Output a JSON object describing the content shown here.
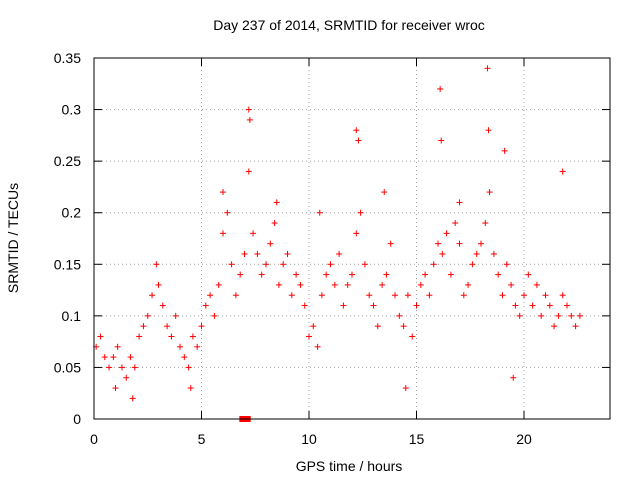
{
  "chart_data": {
    "type": "scatter",
    "title": "Day 237 of 2014, SRMTID for receiver wroc",
    "xlabel": "GPS time / hours",
    "ylabel": "SRMTID / TECUs",
    "xlim": [
      0,
      24
    ],
    "ylim": [
      0,
      0.35
    ],
    "x_ticks": [
      0,
      5,
      10,
      15,
      20
    ],
    "y_ticks": [
      0,
      0.05,
      0.1,
      0.15,
      0.2,
      0.25,
      0.3,
      0.35
    ],
    "x_tick_labels": [
      "0",
      "5",
      "10",
      "15",
      "20"
    ],
    "y_tick_labels": [
      "0",
      "0.05",
      "0.1",
      "0.15",
      "0.2",
      "0.25",
      "0.3",
      "0.35"
    ],
    "grid": true,
    "marker": "+",
    "color": "#ff0000",
    "series": [
      {
        "name": "SRMTID",
        "x": [
          0.1,
          0.3,
          0.5,
          0.7,
          0.9,
          1.1,
          1.3,
          1.5,
          1.7,
          1.9,
          2.1,
          2.3,
          2.5,
          2.7,
          2.9,
          3.0,
          3.2,
          3.4,
          3.6,
          3.8,
          4.0,
          4.2,
          4.4,
          4.6,
          4.8,
          5.0,
          5.2,
          5.4,
          5.6,
          5.8,
          6.0,
          6.2,
          6.4,
          6.6,
          6.8,
          7.0,
          7.2,
          7.4,
          7.6,
          7.8,
          8.0,
          8.2,
          8.4,
          8.6,
          8.8,
          9.0,
          9.2,
          9.4,
          9.6,
          9.8,
          10.0,
          10.2,
          10.4,
          10.6,
          10.8,
          11.0,
          11.2,
          11.4,
          11.6,
          11.8,
          12.0,
          12.2,
          12.4,
          12.6,
          12.8,
          13.0,
          13.2,
          13.4,
          13.6,
          13.8,
          14.0,
          14.2,
          14.4,
          14.6,
          14.8,
          15.0,
          15.2,
          15.4,
          15.6,
          15.8,
          16.0,
          16.2,
          16.4,
          16.6,
          16.8,
          17.0,
          17.2,
          17.4,
          17.6,
          17.8,
          18.0,
          18.2,
          18.4,
          18.6,
          18.8,
          19.0,
          19.2,
          19.4,
          19.6,
          19.8,
          20.0,
          20.2,
          20.4,
          20.6,
          20.8,
          21.0,
          21.2,
          21.4,
          21.6,
          21.8,
          22.0,
          22.2,
          22.4,
          22.6,
          7.2,
          7.25,
          12.2,
          12.3,
          16.1,
          16.15,
          18.3,
          18.35,
          19.1,
          21.8,
          6.0,
          8.5,
          10.5,
          13.5,
          17.0,
          1.0,
          1.8,
          4.5,
          14.5,
          19.5
        ],
        "y": [
          0.07,
          0.08,
          0.06,
          0.05,
          0.06,
          0.07,
          0.05,
          0.04,
          0.06,
          0.05,
          0.08,
          0.09,
          0.1,
          0.12,
          0.15,
          0.13,
          0.11,
          0.09,
          0.08,
          0.1,
          0.07,
          0.06,
          0.05,
          0.08,
          0.07,
          0.09,
          0.11,
          0.12,
          0.1,
          0.13,
          0.18,
          0.2,
          0.15,
          0.12,
          0.14,
          0.16,
          0.24,
          0.18,
          0.16,
          0.14,
          0.15,
          0.17,
          0.19,
          0.13,
          0.15,
          0.16,
          0.12,
          0.14,
          0.13,
          0.11,
          0.08,
          0.09,
          0.07,
          0.12,
          0.14,
          0.15,
          0.13,
          0.16,
          0.11,
          0.13,
          0.14,
          0.18,
          0.2,
          0.15,
          0.12,
          0.11,
          0.09,
          0.13,
          0.14,
          0.17,
          0.12,
          0.1,
          0.09,
          0.12,
          0.08,
          0.11,
          0.13,
          0.14,
          0.12,
          0.15,
          0.17,
          0.16,
          0.18,
          0.14,
          0.19,
          0.17,
          0.12,
          0.13,
          0.15,
          0.16,
          0.17,
          0.19,
          0.22,
          0.16,
          0.14,
          0.12,
          0.15,
          0.13,
          0.11,
          0.1,
          0.12,
          0.14,
          0.11,
          0.13,
          0.1,
          0.12,
          0.11,
          0.09,
          0.1,
          0.12,
          0.11,
          0.1,
          0.09,
          0.1,
          0.3,
          0.29,
          0.28,
          0.27,
          0.32,
          0.27,
          0.34,
          0.28,
          0.26,
          0.24,
          0.22,
          0.21,
          0.2,
          0.22,
          0.21,
          0.03,
          0.02,
          0.03,
          0.03,
          0.04
        ],
        "zero_markers_x": [
          6.9,
          7.0,
          7.1,
          7.15
        ]
      }
    ]
  }
}
